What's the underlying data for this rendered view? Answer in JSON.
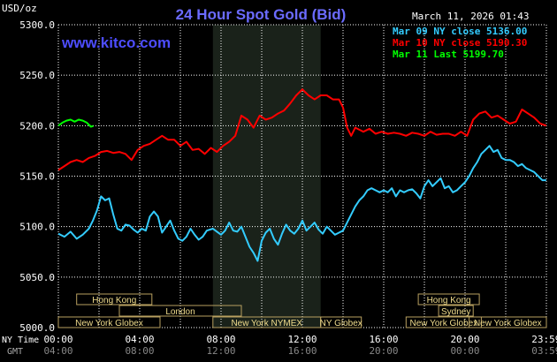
{
  "title": "24 Hour Spot Gold (Bid)",
  "date_label": "March 11, 2026 01:43",
  "unit_label": "USD/oz",
  "watermark": "www.kitco.com",
  "colors": {
    "background": "#000000",
    "grid": "#ffffff",
    "title": "#6b6bff",
    "watermark": "#4d4dff",
    "series_mar09": "#33ccff",
    "series_mar10": "#ff0000",
    "series_mar11": "#00ff00",
    "session_box_fill": "#f5e0a0",
    "session_box_stroke": "#b8a060",
    "ny_session_shade": "#1a221a"
  },
  "legend": [
    {
      "text": "Mar 09 NY close 5136.00",
      "color": "#33ccff"
    },
    {
      "text": "Mar 10 NY close 5190.30",
      "color": "#ff0000"
    },
    {
      "text": "Mar 11 Last 5199.70",
      "color": "#00ff00"
    }
  ],
  "row_labels": {
    "ny_time": "NY Time",
    "gmt": "GMT"
  },
  "chart_data": {
    "type": "line",
    "title": "24 Hour Spot Gold (Bid)",
    "ylabel": "USD/oz",
    "ylim": [
      5000,
      5300
    ],
    "xlim": [
      0,
      24
    ],
    "y_ticks": [
      "5000.0",
      "5050.0",
      "5100.0",
      "5150.0",
      "5200.0",
      "5250.0",
      "5300.0"
    ],
    "x_ticks_ny": [
      "00:00",
      "04:00",
      "08:00",
      "12:00",
      "16:00",
      "20:00",
      "23:59"
    ],
    "x_ticks_gmt": [
      "04:00",
      "08:00",
      "12:00",
      "16:00",
      "20:00",
      "00:00",
      "03:59"
    ],
    "grid": true,
    "legend_position": "top-right",
    "shaded_session": [
      7.6,
      12.9
    ],
    "sessions": [
      {
        "label": "Hong Kong",
        "start": 0.9,
        "end": 4.6,
        "row": 1
      },
      {
        "label": "London",
        "start": 3.0,
        "end": 9.0,
        "row": 2
      },
      {
        "label": "New York Globex",
        "start": 0.0,
        "end": 5.0,
        "row": 3
      },
      {
        "label": "New York NYMEX",
        "start": 7.6,
        "end": 12.9,
        "row": 3
      },
      {
        "label": "NY Globex",
        "start": 12.9,
        "end": 14.9,
        "row": 3
      },
      {
        "label": "Hong Kong",
        "start": 17.7,
        "end": 20.7,
        "row": 1
      },
      {
        "label": "Sydney",
        "start": 18.7,
        "end": 20.4,
        "row": 2
      },
      {
        "label": "New York Globex",
        "start": 17.1,
        "end": 20.8,
        "row": 3
      },
      {
        "label": "New York Globex",
        "start": 20.2,
        "end": 24.0,
        "row": 3
      }
    ],
    "series": [
      {
        "name": "Mar 09 NY close 5136.00",
        "color": "#33ccff",
        "points": [
          [
            0,
            5093
          ],
          [
            0.3,
            5090
          ],
          [
            0.6,
            5095
          ],
          [
            0.9,
            5088
          ],
          [
            1.2,
            5092
          ],
          [
            1.5,
            5098
          ],
          [
            1.7,
            5106
          ],
          [
            1.9,
            5116
          ],
          [
            2.1,
            5130
          ],
          [
            2.3,
            5126
          ],
          [
            2.5,
            5128
          ],
          [
            2.7,
            5112
          ],
          [
            2.9,
            5098
          ],
          [
            3.1,
            5096
          ],
          [
            3.3,
            5102
          ],
          [
            3.5,
            5101
          ],
          [
            3.7,
            5097
          ],
          [
            3.9,
            5094
          ],
          [
            4.1,
            5098
          ],
          [
            4.3,
            5096
          ],
          [
            4.5,
            5110
          ],
          [
            4.7,
            5115
          ],
          [
            4.9,
            5110
          ],
          [
            5.1,
            5094
          ],
          [
            5.3,
            5100
          ],
          [
            5.5,
            5106
          ],
          [
            5.7,
            5096
          ],
          [
            5.9,
            5088
          ],
          [
            6.1,
            5086
          ],
          [
            6.3,
            5090
          ],
          [
            6.5,
            5098
          ],
          [
            6.7,
            5092
          ],
          [
            6.9,
            5087
          ],
          [
            7.1,
            5090
          ],
          [
            7.3,
            5096
          ],
          [
            7.6,
            5098
          ],
          [
            7.8,
            5095
          ],
          [
            8.0,
            5092
          ],
          [
            8.2,
            5096
          ],
          [
            8.4,
            5104
          ],
          [
            8.6,
            5096
          ],
          [
            8.8,
            5095
          ],
          [
            9.0,
            5100
          ],
          [
            9.2,
            5090
          ],
          [
            9.4,
            5080
          ],
          [
            9.6,
            5074
          ],
          [
            9.8,
            5066
          ],
          [
            10.0,
            5086
          ],
          [
            10.2,
            5094
          ],
          [
            10.4,
            5098
          ],
          [
            10.6,
            5088
          ],
          [
            10.8,
            5082
          ],
          [
            11.0,
            5093
          ],
          [
            11.2,
            5102
          ],
          [
            11.4,
            5096
          ],
          [
            11.6,
            5093
          ],
          [
            11.8,
            5098
          ],
          [
            12.0,
            5106
          ],
          [
            12.2,
            5096
          ],
          [
            12.4,
            5100
          ],
          [
            12.6,
            5104
          ],
          [
            12.8,
            5097
          ],
          [
            13.0,
            5093
          ],
          [
            13.2,
            5100
          ],
          [
            13.4,
            5096
          ],
          [
            13.6,
            5092
          ],
          [
            13.8,
            5094
          ],
          [
            14.0,
            5096
          ],
          [
            14.2,
            5104
          ],
          [
            14.4,
            5112
          ],
          [
            14.6,
            5120
          ],
          [
            14.8,
            5126
          ],
          [
            15.0,
            5130
          ],
          [
            15.2,
            5136
          ],
          [
            15.4,
            5138
          ],
          [
            15.6,
            5136
          ],
          [
            15.8,
            5134
          ],
          [
            16.0,
            5136
          ],
          [
            16.2,
            5134
          ],
          [
            16.4,
            5138
          ],
          [
            16.6,
            5130
          ],
          [
            16.8,
            5136
          ],
          [
            17.0,
            5134
          ],
          [
            17.2,
            5136
          ],
          [
            17.4,
            5137
          ],
          [
            17.6,
            5133
          ],
          [
            17.8,
            5128
          ],
          [
            18.0,
            5140
          ],
          [
            18.2,
            5146
          ],
          [
            18.4,
            5140
          ],
          [
            18.6,
            5144
          ],
          [
            18.8,
            5148
          ],
          [
            19.0,
            5138
          ],
          [
            19.2,
            5140
          ],
          [
            19.4,
            5134
          ],
          [
            19.6,
            5136
          ],
          [
            19.8,
            5140
          ],
          [
            20.0,
            5144
          ],
          [
            20.2,
            5150
          ],
          [
            20.4,
            5158
          ],
          [
            20.6,
            5164
          ],
          [
            20.8,
            5172
          ],
          [
            21.0,
            5176
          ],
          [
            21.2,
            5180
          ],
          [
            21.4,
            5174
          ],
          [
            21.6,
            5176
          ],
          [
            21.8,
            5168
          ],
          [
            22.0,
            5166
          ],
          [
            22.2,
            5166
          ],
          [
            22.4,
            5164
          ],
          [
            22.6,
            5160
          ],
          [
            22.8,
            5162
          ],
          [
            23.0,
            5158
          ],
          [
            23.2,
            5156
          ],
          [
            23.4,
            5154
          ],
          [
            23.6,
            5150
          ],
          [
            23.8,
            5146
          ],
          [
            23.99,
            5146
          ]
        ]
      },
      {
        "name": "Mar 10 NY close 5190.30",
        "color": "#ff0000",
        "points": [
          [
            0,
            5156
          ],
          [
            0.3,
            5160
          ],
          [
            0.6,
            5164
          ],
          [
            0.9,
            5166
          ],
          [
            1.2,
            5164
          ],
          [
            1.5,
            5168
          ],
          [
            1.8,
            5170
          ],
          [
            2.1,
            5174
          ],
          [
            2.4,
            5175
          ],
          [
            2.7,
            5173
          ],
          [
            3.0,
            5174
          ],
          [
            3.3,
            5172
          ],
          [
            3.6,
            5166
          ],
          [
            3.9,
            5176
          ],
          [
            4.2,
            5180
          ],
          [
            4.5,
            5182
          ],
          [
            4.8,
            5186
          ],
          [
            5.1,
            5190
          ],
          [
            5.4,
            5186
          ],
          [
            5.7,
            5186
          ],
          [
            6.0,
            5180
          ],
          [
            6.3,
            5184
          ],
          [
            6.6,
            5176
          ],
          [
            6.9,
            5177
          ],
          [
            7.2,
            5172
          ],
          [
            7.5,
            5178
          ],
          [
            7.8,
            5174
          ],
          [
            8.1,
            5180
          ],
          [
            8.4,
            5184
          ],
          [
            8.7,
            5190
          ],
          [
            9.0,
            5210
          ],
          [
            9.3,
            5206
          ],
          [
            9.6,
            5198
          ],
          [
            9.9,
            5210
          ],
          [
            10.2,
            5206
          ],
          [
            10.5,
            5208
          ],
          [
            10.8,
            5212
          ],
          [
            11.1,
            5215
          ],
          [
            11.4,
            5222
          ],
          [
            11.7,
            5230
          ],
          [
            12.0,
            5236
          ],
          [
            12.3,
            5230
          ],
          [
            12.6,
            5226
          ],
          [
            12.9,
            5230
          ],
          [
            13.2,
            5230
          ],
          [
            13.5,
            5226
          ],
          [
            13.8,
            5226
          ],
          [
            14.0,
            5218
          ],
          [
            14.2,
            5198
          ],
          [
            14.4,
            5190
          ],
          [
            14.6,
            5198
          ],
          [
            14.8,
            5196
          ],
          [
            15.0,
            5194
          ],
          [
            15.3,
            5197
          ],
          [
            15.6,
            5192
          ],
          [
            15.9,
            5194
          ],
          [
            16.2,
            5192
          ],
          [
            16.5,
            5193
          ],
          [
            16.8,
            5192
          ],
          [
            17.1,
            5190
          ],
          [
            17.4,
            5193
          ],
          [
            17.7,
            5192
          ],
          [
            18.0,
            5190
          ],
          [
            18.3,
            5194
          ],
          [
            18.6,
            5191
          ],
          [
            18.9,
            5192
          ],
          [
            19.2,
            5192
          ],
          [
            19.5,
            5190
          ],
          [
            19.8,
            5194
          ],
          [
            20.1,
            5190
          ],
          [
            20.4,
            5206
          ],
          [
            20.7,
            5212
          ],
          [
            21.0,
            5214
          ],
          [
            21.3,
            5208
          ],
          [
            21.6,
            5210
          ],
          [
            21.9,
            5206
          ],
          [
            22.2,
            5202
          ],
          [
            22.5,
            5204
          ],
          [
            22.8,
            5216
          ],
          [
            23.1,
            5212
          ],
          [
            23.4,
            5208
          ],
          [
            23.7,
            5202
          ],
          [
            23.99,
            5200
          ]
        ]
      },
      {
        "name": "Mar 11 Last 5199.70",
        "color": "#00ff00",
        "points": [
          [
            0,
            5200
          ],
          [
            0.2,
            5203
          ],
          [
            0.4,
            5205
          ],
          [
            0.6,
            5206
          ],
          [
            0.8,
            5204
          ],
          [
            1.0,
            5206
          ],
          [
            1.2,
            5205
          ],
          [
            1.4,
            5203
          ],
          [
            1.6,
            5199
          ],
          [
            1.72,
            5199.7
          ]
        ]
      }
    ]
  }
}
